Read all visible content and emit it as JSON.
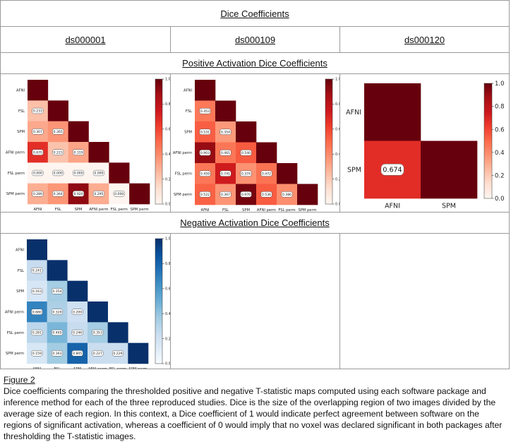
{
  "table": {
    "title": "Dice Coefficients",
    "columns": [
      "ds000001",
      "ds000109",
      "ds000120"
    ],
    "positive_title": "Positive Activation Dice Coefficients",
    "negative_title": "Negative Activation Dice Coefficients"
  },
  "caption": {
    "title": "Figure 2",
    "text": "Dice coefficients comparing the thresholded positive and negative T-statistic maps computed using each software package and inference method for each of the three reproduced studies.  Dice is the size of the overlapping region of two images divided by the average size of each region. In this context, a Dice coefficient of 1 would indicate perfect agreement between software on the regions of significant activation, whereas a coefficient of 0 would imply that no voxel was declared significant in both packages after thresholding the T-statistic images."
  },
  "colors": {
    "positive_cmap": "Reds",
    "negative_cmap": "Blues"
  },
  "chart_data": [
    {
      "type": "heatmap",
      "name": "ds000001-positive",
      "colormap": "Reds",
      "vlim": [
        0,
        1
      ],
      "labels": [
        "AFNI",
        "FSL",
        "SPM",
        "AFNI perm",
        "FSL perm",
        "SPM perm"
      ],
      "colorbar_ticks": [
        "0.0",
        "0.2",
        "0.4",
        "0.6",
        "0.8",
        "1.0"
      ],
      "values": [
        [
          1
        ],
        [
          0.233,
          1
        ],
        [
          0.307,
          0.365,
          1
        ],
        [
          0.67,
          0.223,
          0.319,
          1
        ],
        [
          0.0,
          0.0,
          0.0,
          0.0,
          1
        ],
        [
          0.289,
          0.364,
          0.92,
          0.295,
          0.0,
          1
        ]
      ],
      "value_labels": [
        [],
        [
          "0.233"
        ],
        [
          "0.307",
          "0.365"
        ],
        [
          "0.670",
          "0.223",
          "0.319"
        ],
        [
          "0.000",
          "0.000",
          "0.000",
          "0.000"
        ],
        [
          "0.289",
          "0.364",
          "0.920",
          "0.295",
          "0.000"
        ]
      ]
    },
    {
      "type": "heatmap",
      "name": "ds000109-positive",
      "colormap": "Reds",
      "vlim": [
        0,
        1
      ],
      "labels": [
        "AFNI",
        "FSL",
        "SPM",
        "AFNI perm",
        "FSL perm",
        "SPM perm"
      ],
      "colorbar_ticks": [
        "0.0",
        "0.2",
        "0.4",
        "0.6",
        "0.8",
        "1.0"
      ],
      "values": [
        [
          1
        ],
        [
          0.453,
          1
        ],
        [
          0.531,
          0.354,
          1
        ],
        [
          0.903,
          0.461,
          0.54,
          1
        ],
        [
          0.459,
          0.741,
          0.374,
          0.472,
          1
        ],
        [
          0.522,
          0.367,
          0.97,
          0.536,
          0.386,
          1
        ]
      ],
      "value_labels": [
        [],
        [
          "0.453"
        ],
        [
          "0.531",
          "0.354"
        ],
        [
          "0.903",
          "0.461",
          "0.540"
        ],
        [
          "0.459",
          "0.741",
          "0.374",
          "0.472"
        ],
        [
          "0.522",
          "0.367",
          "0.970",
          "0.536",
          "0.386"
        ]
      ]
    },
    {
      "type": "heatmap",
      "name": "ds000120-positive",
      "colormap": "Reds",
      "vlim": [
        0,
        1
      ],
      "labels": [
        "AFNI",
        "SPM"
      ],
      "colorbar_ticks": [
        "0.0",
        "0.2",
        "0.4",
        "0.6",
        "0.8",
        "1.0"
      ],
      "values": [
        [
          1
        ],
        [
          0.674,
          1
        ]
      ],
      "value_labels": [
        [],
        [
          "0.674"
        ]
      ]
    },
    {
      "type": "heatmap",
      "name": "ds000001-negative",
      "colormap": "Blues",
      "vlim": [
        0,
        1
      ],
      "labels": [
        "AFNI",
        "FSL",
        "SPM",
        "AFNI perm",
        "FSL perm",
        "SPM perm"
      ],
      "colorbar_ticks": [
        "0.0",
        "0.2",
        "0.4",
        "0.6",
        "0.8",
        "1.0"
      ],
      "values": [
        [
          1
        ],
        [
          0.241,
          1
        ],
        [
          0.163,
          0.354,
          1
        ],
        [
          0.68,
          0.329,
          0.209,
          1
        ],
        [
          0.281,
          0.465,
          0.246,
          0.353,
          1
        ],
        [
          0.159,
          0.363,
          0.805,
          0.227,
          0.229,
          1
        ]
      ],
      "value_labels": [
        [],
        [
          "0.241"
        ],
        [
          "0.163",
          "0.354"
        ],
        [
          "0.680",
          "0.329",
          "0.209"
        ],
        [
          "0.281",
          "0.465",
          "0.246",
          "0.353"
        ],
        [
          "0.159",
          "0.363",
          "0.805",
          "0.227",
          "0.229"
        ]
      ]
    }
  ]
}
